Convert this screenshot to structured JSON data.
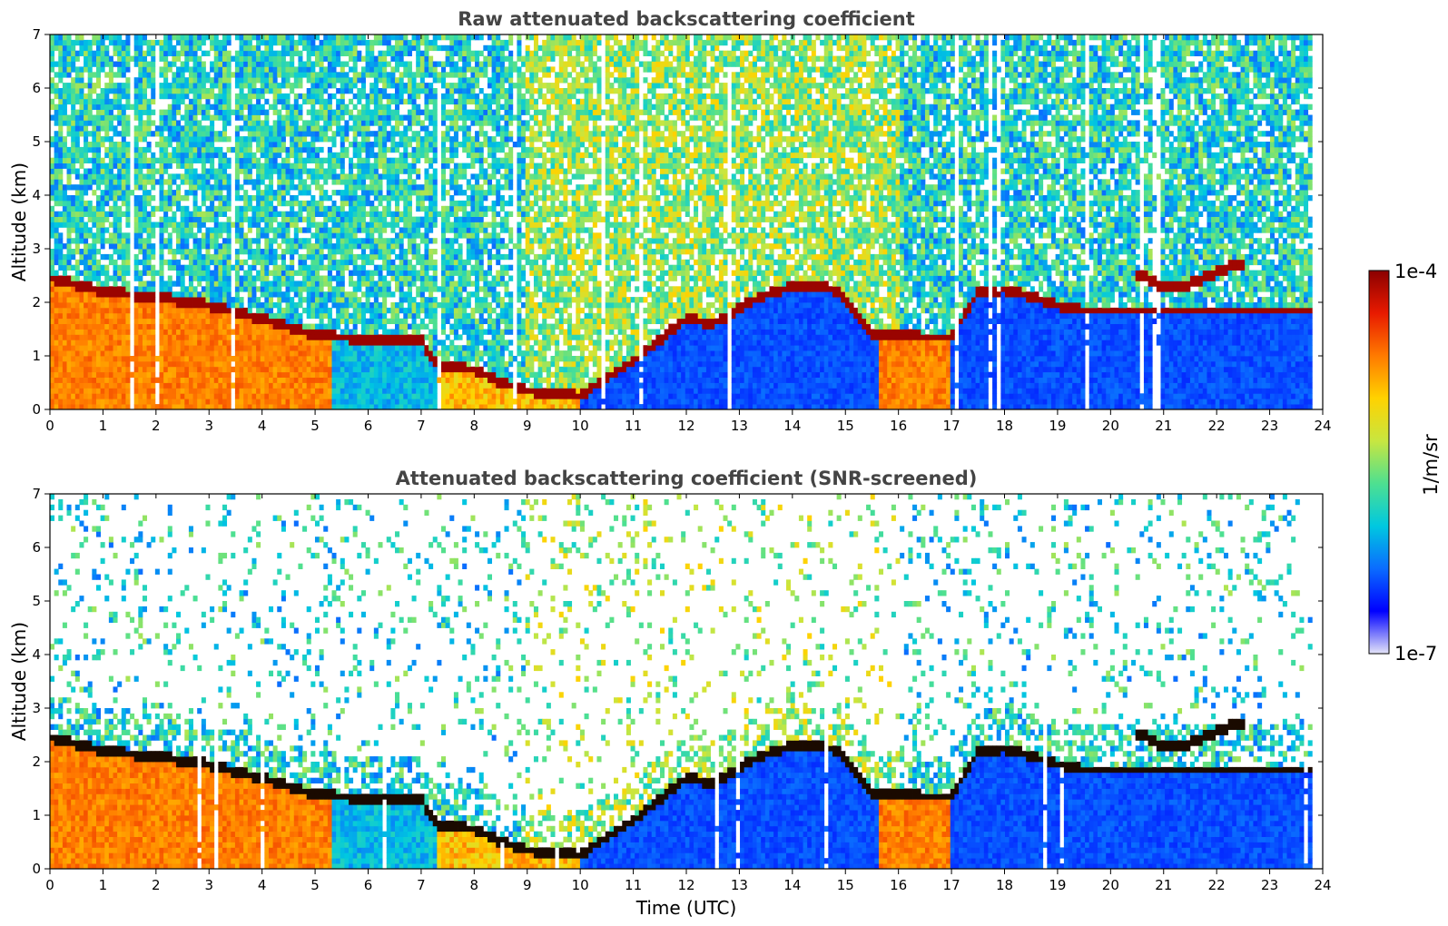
{
  "chart_data": [
    {
      "type": "heatmap",
      "title": "Raw attenuated backscattering coefficient",
      "xlabel": "",
      "ylabel": "Altitude (km)",
      "xlim": [
        0,
        24
      ],
      "ylim": [
        0,
        7
      ],
      "xticks": [
        "0",
        "1",
        "2",
        "3",
        "4",
        "5",
        "6",
        "7",
        "8",
        "9",
        "10",
        "11",
        "12",
        "13",
        "14",
        "15",
        "16",
        "17",
        "18",
        "19",
        "20",
        "21",
        "22",
        "23",
        "24"
      ],
      "yticks": [
        "0",
        "1",
        "2",
        "3",
        "4",
        "5",
        "6",
        "7"
      ],
      "data_end_time": 23.8,
      "layer_top": {
        "x": [
          0,
          1,
          2,
          3,
          4,
          4.3,
          5,
          5.5,
          6,
          7,
          7.3,
          8,
          8.5,
          9,
          10,
          10.5,
          11,
          12,
          12.5,
          13,
          13.5,
          14,
          14.5,
          14.9,
          15.5,
          16,
          16.5,
          17,
          17.5,
          18,
          18.5,
          19,
          19.5
        ],
        "y": [
          2.45,
          2.2,
          2.1,
          1.95,
          1.7,
          1.6,
          1.4,
          1.35,
          1.3,
          1.3,
          0.8,
          0.75,
          0.5,
          0.35,
          0.25,
          0.6,
          0.9,
          1.7,
          1.6,
          1.9,
          2.15,
          2.3,
          2.3,
          2.2,
          1.4,
          1.4,
          1.35,
          1.35,
          2.2,
          2.25,
          2.1,
          1.95,
          1.85
        ]
      },
      "upper_cloud_layer": {
        "x": [
          20.5,
          21,
          21.5,
          22,
          22.5
        ],
        "y": [
          2.55,
          2.3,
          2.35,
          2.55,
          2.75
        ]
      }
    },
    {
      "type": "heatmap",
      "title": "Attenuated backscattering coefficient (SNR-screened)",
      "xlabel": "Time (UTC)",
      "ylabel": "Altitude (km)",
      "xlim": [
        0,
        24
      ],
      "ylim": [
        0,
        7
      ],
      "xticks": [
        "0",
        "1",
        "2",
        "3",
        "4",
        "5",
        "6",
        "7",
        "8",
        "9",
        "10",
        "11",
        "12",
        "13",
        "14",
        "15",
        "16",
        "17",
        "18",
        "19",
        "20",
        "21",
        "22",
        "23",
        "24"
      ],
      "yticks": [
        "0",
        "1",
        "2",
        "3",
        "4",
        "5",
        "6",
        "7"
      ],
      "data_end_time": 23.8
    }
  ],
  "colorbar": {
    "label": "1/m/sr",
    "max_label": "1e-4",
    "min_label": "1e-7",
    "colors": [
      "#e4e4f8",
      "#0000ff",
      "#0a6cff",
      "#00c8e0",
      "#4ee090",
      "#c8e640",
      "#ffd200",
      "#ff7a00",
      "#e81a00",
      "#8b0000"
    ]
  }
}
